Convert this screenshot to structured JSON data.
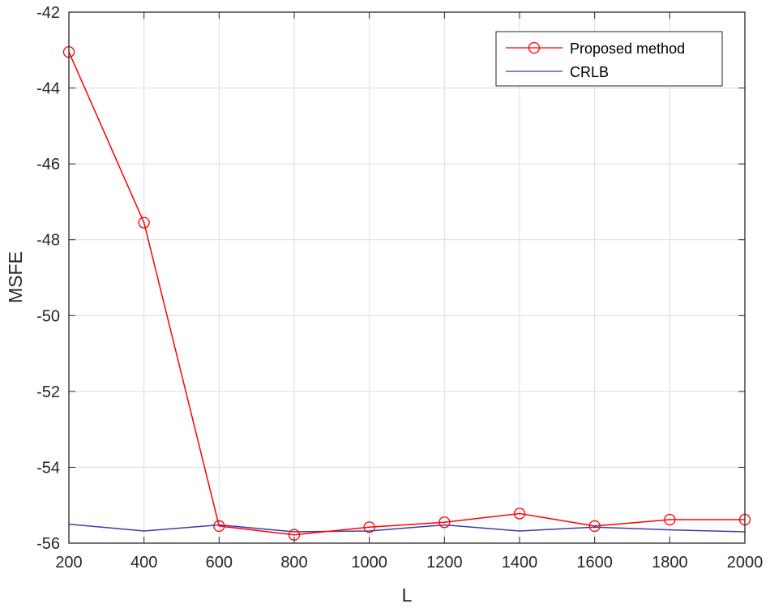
{
  "chart_data": {
    "type": "line",
    "title": "",
    "xlabel": "L",
    "ylabel": "MSFE",
    "xlim": [
      200,
      2000
    ],
    "ylim": [
      -56,
      -42
    ],
    "xticks": [
      200,
      400,
      600,
      800,
      1000,
      1200,
      1400,
      1600,
      1800,
      2000
    ],
    "yticks": [
      -56,
      -54,
      -52,
      -50,
      -48,
      -46,
      -44,
      -42
    ],
    "grid": true,
    "legend_position": "top-right",
    "x": [
      200,
      400,
      600,
      800,
      1000,
      1200,
      1400,
      1600,
      1800,
      2000
    ],
    "series": [
      {
        "name": "Proposed method",
        "color": "#ff0000",
        "marker": "circle",
        "values": [
          -43.05,
          -47.55,
          -55.55,
          -55.78,
          -55.58,
          -55.45,
          -55.22,
          -55.55,
          -55.38,
          -55.38
        ]
      },
      {
        "name": "CRLB",
        "color": "#3b3bb0",
        "marker": "none",
        "values": [
          -55.5,
          -55.68,
          -55.52,
          -55.7,
          -55.68,
          -55.52,
          -55.68,
          -55.58,
          -55.65,
          -55.7
        ]
      }
    ]
  }
}
